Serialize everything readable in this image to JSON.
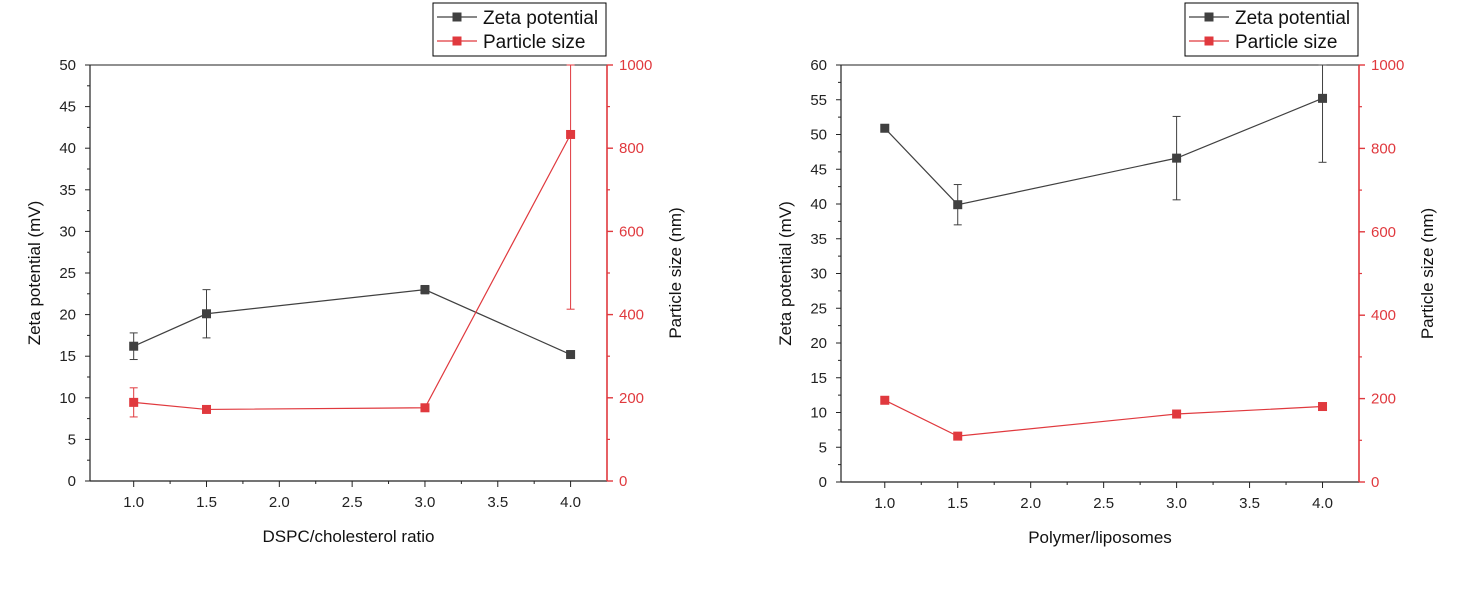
{
  "colors": {
    "zeta": "#404040",
    "size": "#e0393e",
    "axis": "#222222",
    "right_axis": "#e0393e"
  },
  "legend": {
    "zeta_label": "Zeta potential",
    "size_label": "Particle size"
  },
  "chart_data": [
    {
      "type": "line",
      "xlabel": "DSPC/cholesterol ratio",
      "ylabel": "Zeta potential (mV)",
      "y2label": "Particle size (nm)",
      "xlim": [
        0.7,
        4.25
      ],
      "ylim": [
        0,
        50
      ],
      "y2lim": [
        0,
        1000
      ],
      "x_ticks": [
        "1.0",
        "1.5",
        "2.0",
        "2.5",
        "3.0",
        "3.5",
        "4.0"
      ],
      "y_ticks": [
        "0",
        "5",
        "10",
        "15",
        "20",
        "25",
        "30",
        "35",
        "40",
        "45",
        "50"
      ],
      "y2_ticks": [
        "0",
        "200",
        "400",
        "600",
        "800",
        "1000"
      ],
      "x": [
        1.0,
        1.5,
        3.0,
        4.0
      ],
      "series": [
        {
          "name": "Zeta potential",
          "axis": "left",
          "values": [
            16.2,
            20.1,
            23.0,
            15.2
          ],
          "errors": [
            1.6,
            2.9,
            0.5,
            0.3
          ]
        },
        {
          "name": "Particle size",
          "axis": "right",
          "values": [
            189,
            172,
            176,
            833
          ],
          "errors": [
            35,
            4,
            5,
            420
          ]
        }
      ],
      "legend_position": "top-right"
    },
    {
      "type": "line",
      "xlabel": "Polymer/liposomes",
      "ylabel": "Zeta potential (mV)",
      "y2label": "Particle size (nm)",
      "xlim": [
        0.7,
        4.25
      ],
      "ylim": [
        0,
        60
      ],
      "y2lim": [
        0,
        1000
      ],
      "x_ticks": [
        "1.0",
        "1.5",
        "2.0",
        "2.5",
        "3.0",
        "3.5",
        "4.0"
      ],
      "y_ticks": [
        "0",
        "5",
        "10",
        "15",
        "20",
        "25",
        "30",
        "35",
        "40",
        "45",
        "50",
        "55",
        "60"
      ],
      "y2_ticks": [
        "0",
        "200",
        "400",
        "600",
        "800",
        "1000"
      ],
      "x": [
        1.0,
        1.5,
        3.0,
        4.0
      ],
      "series": [
        {
          "name": "Zeta potential",
          "axis": "left",
          "values": [
            50.9,
            39.9,
            46.6,
            55.2
          ],
          "errors": [
            0.3,
            2.9,
            6.0,
            9.2
          ]
        },
        {
          "name": "Particle size",
          "axis": "right",
          "values": [
            196,
            110,
            163,
            181
          ],
          "errors": [
            3,
            3,
            3,
            3
          ]
        }
      ],
      "legend_position": "top-right"
    }
  ]
}
